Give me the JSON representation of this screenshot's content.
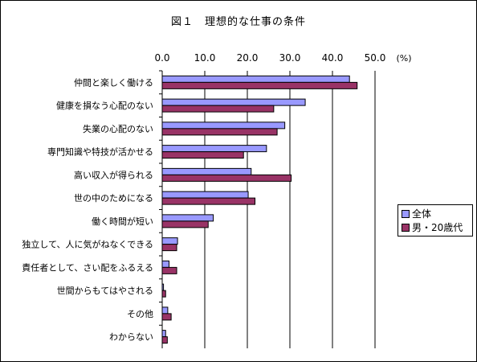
{
  "chart_data": {
    "type": "bar",
    "orientation": "horizontal",
    "title": "図１　理想的な仕事の条件",
    "unit_label": "(%)",
    "xlim": [
      0,
      50
    ],
    "ticks": [
      "0.0",
      "10.0",
      "20.0",
      "30.0",
      "40.0",
      "50.0"
    ],
    "tick_values": [
      0,
      10,
      20,
      30,
      40,
      50
    ],
    "grid": true,
    "legend_position": "right",
    "categories": [
      "仲間と楽しく働ける",
      "健康を損なう心配のない",
      "失業の心配のない",
      "専門知識や特技が活かせる",
      "高い収入が得られる",
      "世の中のためになる",
      "働く時間が短い",
      "独立して、人に気がねなくできる",
      "責任者として、さい配をふるえる",
      "世間からもてはやされる",
      "その他",
      "わからない"
    ],
    "series": [
      {
        "name": "全体",
        "color": "#9999ff",
        "values": [
          44.0,
          33.6,
          28.8,
          24.5,
          20.9,
          20.2,
          12.0,
          3.6,
          1.6,
          0.3,
          1.3,
          0.8
        ]
      },
      {
        "name": "男・20歳代",
        "color": "#993366",
        "values": [
          45.8,
          26.2,
          27.0,
          19.1,
          30.3,
          21.8,
          10.8,
          3.4,
          3.4,
          0.8,
          2.1,
          1.2
        ]
      }
    ]
  }
}
